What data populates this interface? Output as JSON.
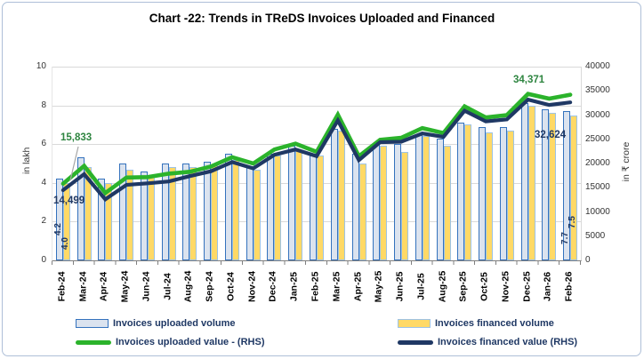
{
  "title": "Chart -22: Trends in TReDS Invoices Uploaded and Financed",
  "chart_data": {
    "type": "combo: grouped bars (LHS) + lines (RHS)",
    "categories": [
      "Feb-24",
      "Mar-24",
      "Apr-24",
      "May-24",
      "Jun-24",
      "Jul-24",
      "Aug-24",
      "Sep-24",
      "Oct-24",
      "Nov-24",
      "Dec-24",
      "Jan-25",
      "Feb-25",
      "Mar-25",
      "Apr-25",
      "May-25",
      "Jun-25",
      "Jul-25",
      "Aug-25",
      "Sep-25",
      "Oct-25",
      "Nov-25",
      "Dec-25",
      "Jan-26",
      "Feb-26"
    ],
    "series": [
      {
        "name": "Invoices uploaded volume",
        "type": "bar",
        "axis": "left",
        "unit": "lakh",
        "values": [
          4.2,
          5.3,
          4.2,
          5.0,
          4.6,
          5.0,
          5.0,
          5.1,
          5.5,
          4.8,
          5.5,
          5.9,
          5.5,
          6.8,
          5.5,
          6.0,
          6.0,
          6.5,
          6.3,
          7.1,
          6.9,
          6.9,
          8.1,
          7.8,
          7.7
        ]
      },
      {
        "name": "Invoices financed volume",
        "type": "bar",
        "axis": "left",
        "unit": "lakh",
        "values": [
          4.0,
          4.8,
          4.0,
          4.7,
          4.4,
          4.8,
          4.8,
          4.9,
          5.2,
          4.7,
          5.4,
          5.7,
          5.4,
          6.7,
          5.0,
          5.9,
          5.6,
          6.4,
          5.9,
          7.0,
          6.6,
          6.7,
          8.0,
          7.6,
          7.5
        ]
      },
      {
        "name": "Invoices uploaded value - (RHS)",
        "type": "line",
        "axis": "right",
        "unit": "₹ crore",
        "values": [
          15833,
          19500,
          13900,
          17100,
          17200,
          17900,
          18300,
          19400,
          21300,
          20000,
          22900,
          24100,
          22400,
          30100,
          21500,
          24900,
          25300,
          27300,
          26300,
          31800,
          29500,
          30000,
          34371,
          33400,
          34200
        ]
      },
      {
        "name": "Invoices financed value (RHS)",
        "type": "line",
        "axis": "right",
        "unit": "₹ crore",
        "values": [
          14499,
          17800,
          12600,
          15600,
          15900,
          16300,
          17400,
          18400,
          20300,
          19000,
          21800,
          22900,
          21500,
          28900,
          20700,
          24400,
          24500,
          26200,
          25500,
          30900,
          28700,
          29100,
          33200,
          32100,
          32624
        ]
      }
    ],
    "left_axis": {
      "title": "in lakh",
      "min": 0,
      "max": 10,
      "ticks": [
        0,
        2,
        4,
        6,
        8,
        10
      ]
    },
    "right_axis": {
      "title": "in ₹ crore",
      "min": 0,
      "max": 40000,
      "ticks": [
        0,
        5000,
        10000,
        15000,
        20000,
        25000,
        30000,
        35000,
        40000
      ]
    },
    "annotations": {
      "uploaded_value_first": "15,833",
      "financed_value_first": "14,499",
      "uploaded_value_peak": "34,371",
      "financed_value_last": "32,624",
      "uploaded_volume_first": "4.2",
      "financed_volume_first": "4.0",
      "uploaded_volume_last": "7.7",
      "financed_volume_last": "7.5"
    },
    "legend_position": "bottom",
    "grid": true
  },
  "colors": {
    "uploaded_bar_fill": "#dbe3ef",
    "uploaded_bar_border": "#3472bd",
    "financed_bar_fill": "#ffd966",
    "financed_bar_border": "#9dc3e6",
    "uploaded_line": "#2bb32b",
    "financed_line": "#1f3864",
    "green_label": "#2e8540",
    "navy_label": "#1f3864",
    "gridline": "#d9d9d9",
    "leader_line": "#a6a6a6",
    "frame_border": "#aebfd8"
  }
}
